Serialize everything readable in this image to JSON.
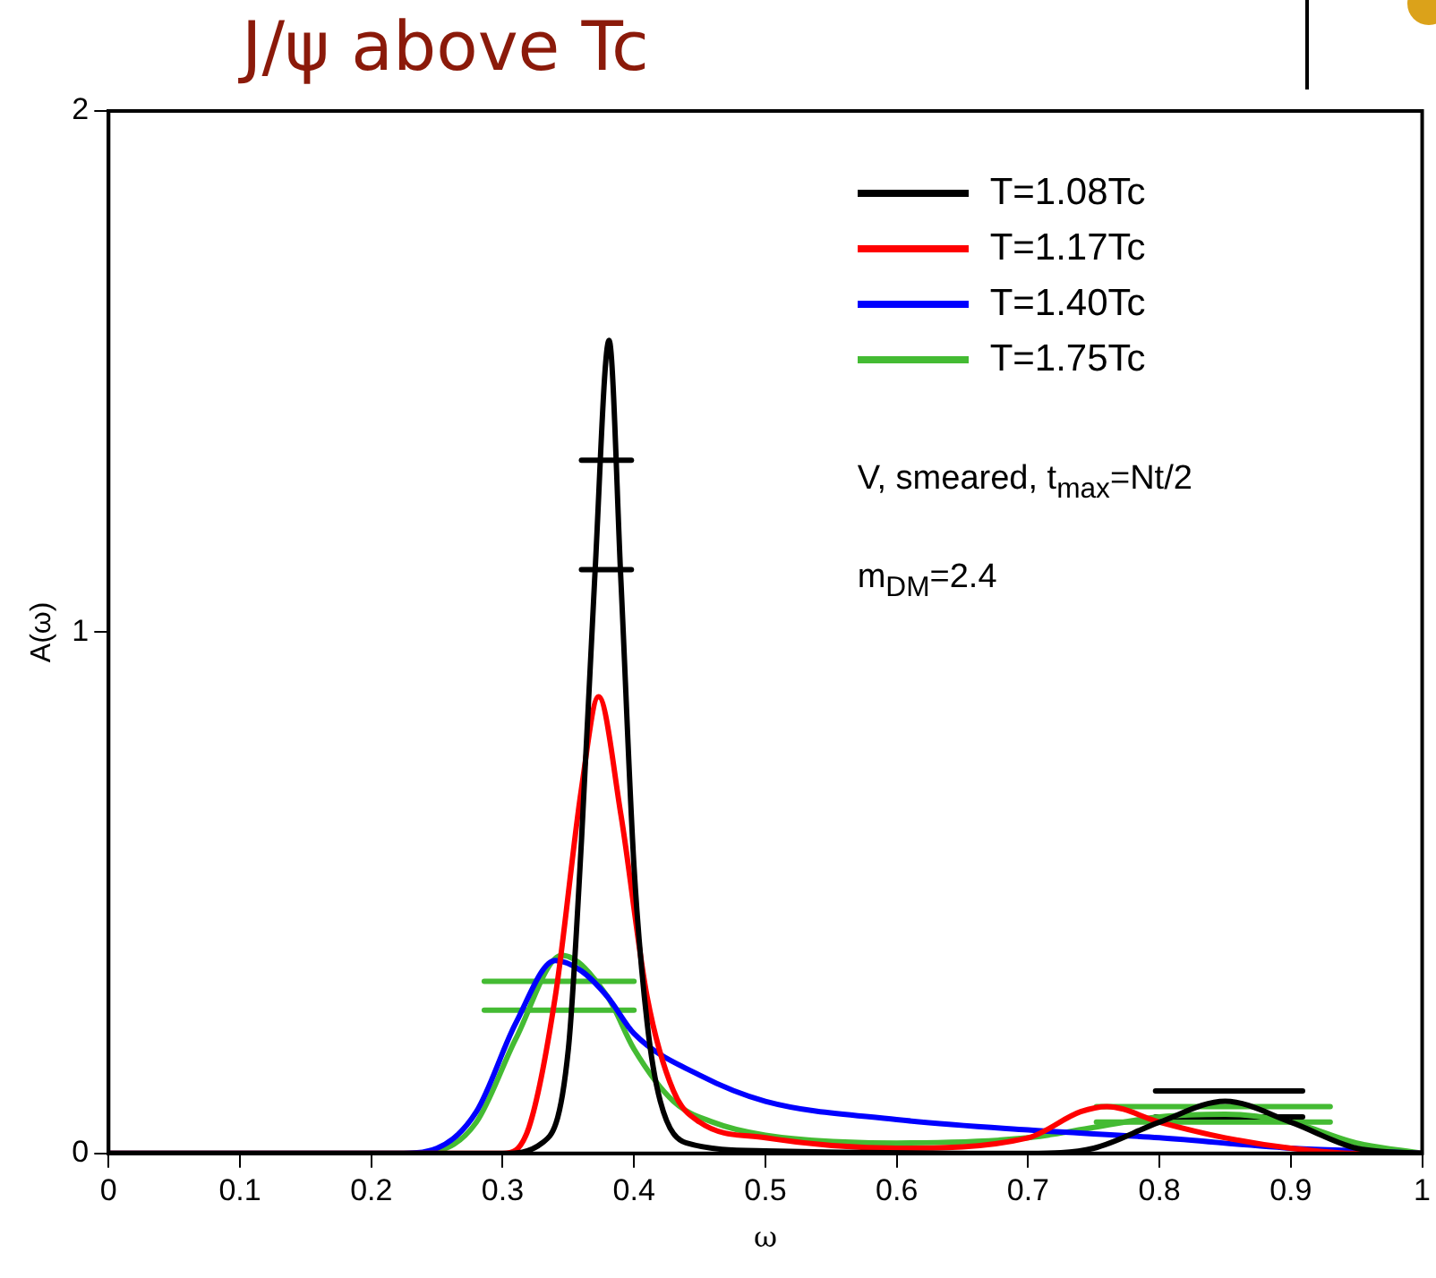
{
  "chart_data": {
    "type": "line",
    "title": "J/ψ above Tc",
    "xlabel": "ω",
    "ylabel": "A(ω)",
    "xlim": [
      0,
      1
    ],
    "xticks": [
      0,
      0.1,
      0.2,
      0.3,
      0.4,
      0.5,
      0.6,
      0.7,
      0.8,
      0.9,
      1
    ],
    "ylim": [
      0,
      2
    ],
    "yticks": [
      0,
      1,
      2
    ],
    "grid": false,
    "legend": "top right",
    "marker": "none",
    "annotations": [
      "V, smeared, t$_{max}$=Nt/2",
      "m$_{DM}$=2.4"
    ],
    "series": [
      {
        "name": "T=1.08Tc",
        "color": "#000000",
        "x": [
          0,
          0.25,
          0.3,
          0.33,
          0.35,
          0.36,
          0.37,
          0.381,
          0.39,
          0.4,
          0.41,
          0.42,
          0.44,
          0.5,
          0.7,
          0.75,
          0.8,
          0.85,
          0.9,
          0.95,
          1
        ],
        "values": [
          0,
          0,
          0,
          0.02,
          0.2,
          0.6,
          1.1,
          1.56,
          1.1,
          0.55,
          0.25,
          0.1,
          0.02,
          0.005,
          0,
          0.01,
          0.06,
          0.1,
          0.06,
          0.01,
          0
        ]
      },
      {
        "name": "T=1.17Tc",
        "color": "#ff0000",
        "x": [
          0,
          0.25,
          0.3,
          0.32,
          0.34,
          0.36,
          0.373,
          0.39,
          0.41,
          0.43,
          0.45,
          0.5,
          0.6,
          0.7,
          0.74,
          0.76,
          0.8,
          0.85,
          0.9,
          0.95,
          1
        ],
        "values": [
          0,
          0,
          0,
          0.05,
          0.3,
          0.7,
          0.876,
          0.65,
          0.3,
          0.12,
          0.06,
          0.03,
          0.01,
          0.03,
          0.08,
          0.09,
          0.06,
          0.03,
          0.01,
          0,
          0
        ]
      },
      {
        "name": "T=1.40Tc",
        "color": "#0000ff",
        "x": [
          0,
          0.22,
          0.25,
          0.28,
          0.31,
          0.34,
          0.36,
          0.38,
          0.4,
          0.45,
          0.5,
          0.6,
          0.7,
          0.8,
          0.9,
          0.95,
          1
        ],
        "values": [
          0,
          0,
          0.01,
          0.08,
          0.25,
          0.37,
          0.35,
          0.3,
          0.23,
          0.15,
          0.1,
          0.065,
          0.045,
          0.03,
          0.01,
          0.005,
          0
        ]
      },
      {
        "name": "T=1.75Tc",
        "color": "#44bb33",
        "x": [
          0,
          0.22,
          0.25,
          0.28,
          0.31,
          0.345,
          0.38,
          0.4,
          0.43,
          0.46,
          0.5,
          0.6,
          0.7,
          0.75,
          0.8,
          0.85,
          0.9,
          0.95,
          1
        ],
        "values": [
          0,
          0,
          0.005,
          0.06,
          0.22,
          0.38,
          0.3,
          0.2,
          0.1,
          0.06,
          0.035,
          0.02,
          0.03,
          0.05,
          0.07,
          0.075,
          0.06,
          0.02,
          0
        ]
      },
      {
        "color": "#000000",
        "x": [
          0.36,
          0.398
        ],
        "values": [
          1.33,
          1.33
        ]
      },
      {
        "color": "#000000",
        "x": [
          0.36,
          0.398
        ],
        "values": [
          1.12,
          1.12
        ]
      },
      {
        "color": "#000000",
        "x": [
          0.797,
          0.909
        ],
        "values": [
          0.12,
          0.12
        ]
      },
      {
        "color": "#000000",
        "x": [
          0.797,
          0.909
        ],
        "values": [
          0.07,
          0.07
        ]
      },
      {
        "color": "#44bb33",
        "x": [
          0.286,
          0.4
        ],
        "values": [
          0.33,
          0.33
        ]
      },
      {
        "color": "#44bb33",
        "x": [
          0.286,
          0.4
        ],
        "values": [
          0.275,
          0.275
        ]
      },
      {
        "color": "#44bb33",
        "x": [
          0.752,
          0.93
        ],
        "values": [
          0.09,
          0.09
        ]
      },
      {
        "color": "#44bb33",
        "x": [
          0.752,
          0.93
        ],
        "values": [
          0.06,
          0.06
        ]
      }
    ]
  }
}
